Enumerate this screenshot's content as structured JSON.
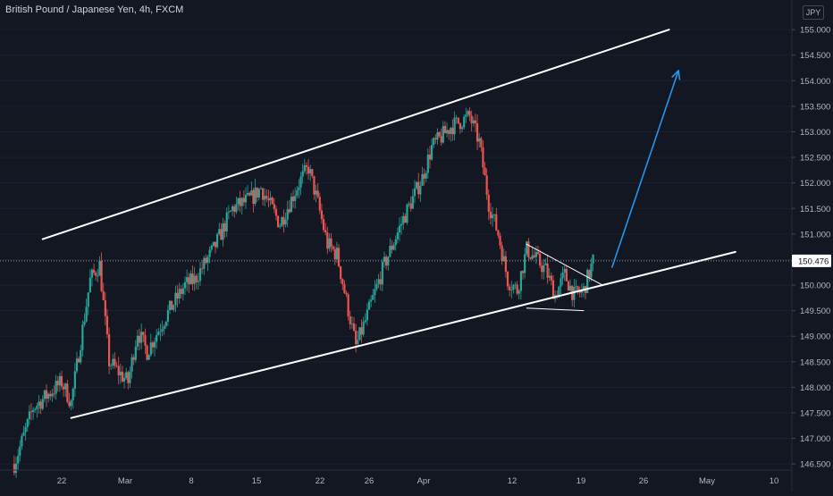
{
  "chart_data": {
    "type": "candlestick",
    "title": "British Pound / Japanese Yen, 4h, FXCM",
    "currency": "JPY",
    "last_price": 150.476,
    "y_ticks": [
      155.0,
      154.5,
      154.0,
      153.5,
      153.0,
      152.5,
      152.0,
      151.5,
      151.0,
      150.5,
      150.0,
      149.5,
      149.0,
      148.5,
      148.0,
      147.5,
      147.0,
      146.5
    ],
    "y_tick_labels": [
      "155.000",
      "154.500",
      "154.000",
      "153.500",
      "153.000",
      "152.500",
      "152.000",
      "151.500",
      "151.000",
      "150.500",
      "150.000",
      "149.500",
      "149.000",
      "148.500",
      "148.000",
      "147.500",
      "147.000",
      "146.500"
    ],
    "ylim": [
      146.45,
      155.3
    ],
    "x_ticks": [
      "22",
      "Mar",
      "8",
      "15",
      "22",
      "26",
      "Apr",
      "12",
      "19",
      "26",
      "May",
      "10"
    ],
    "colors": {
      "up": "#26a69a",
      "down": "#ef5350",
      "arrow": "#2196f3",
      "line": "#ffffff",
      "bg": "#131722",
      "axis_text": "#b2b5be"
    },
    "price_path": [
      {
        "date": "Feb 17",
        "price": 146.5
      },
      {
        "date": "Feb 19",
        "price": 147.6
      },
      {
        "date": "Feb 22",
        "price": 148.1
      },
      {
        "date": "Feb 23",
        "price": 147.7
      },
      {
        "date": "Feb 25",
        "price": 150.1
      },
      {
        "date": "Feb 26",
        "price": 150.4
      },
      {
        "date": "Feb 27",
        "price": 148.5
      },
      {
        "date": "Mar 1",
        "price": 148.1
      },
      {
        "date": "Mar 2",
        "price": 149.1
      },
      {
        "date": "Mar 3",
        "price": 148.7
      },
      {
        "date": "Mar 5",
        "price": 149.4
      },
      {
        "date": "Mar 7",
        "price": 150.0
      },
      {
        "date": "Mar 8",
        "price": 150.1
      },
      {
        "date": "Mar 10",
        "price": 150.7
      },
      {
        "date": "Mar 12",
        "price": 151.5
      },
      {
        "date": "Mar 14",
        "price": 151.7
      },
      {
        "date": "Mar 15",
        "price": 151.9
      },
      {
        "date": "Mar 17",
        "price": 151.2
      },
      {
        "date": "Mar 19",
        "price": 152.0
      },
      {
        "date": "Mar 20",
        "price": 152.3
      },
      {
        "date": "Mar 21",
        "price": 151.6
      },
      {
        "date": "Mar 22",
        "price": 150.8
      },
      {
        "date": "Mar 23",
        "price": 150.6
      },
      {
        "date": "Mar 25",
        "price": 148.8
      },
      {
        "date": "Mar 26",
        "price": 149.3
      },
      {
        "date": "Mar 28",
        "price": 150.4
      },
      {
        "date": "Mar 30",
        "price": 151.3
      },
      {
        "date": "Apr 1",
        "price": 152.1
      },
      {
        "date": "Apr 2",
        "price": 152.7
      },
      {
        "date": "Apr 4",
        "price": 153.1
      },
      {
        "date": "Apr 6",
        "price": 153.3
      },
      {
        "date": "Apr 7",
        "price": 152.8
      },
      {
        "date": "Apr 8",
        "price": 151.6
      },
      {
        "date": "Apr 9",
        "price": 151.0
      },
      {
        "date": "Apr 10",
        "price": 150.1
      },
      {
        "date": "Apr 11",
        "price": 149.9
      },
      {
        "date": "Apr 12",
        "price": 150.7
      },
      {
        "date": "Apr 14",
        "price": 150.3
      },
      {
        "date": "Apr 15",
        "price": 149.8
      },
      {
        "date": "Apr 16",
        "price": 150.2
      },
      {
        "date": "Apr 17",
        "price": 149.8
      },
      {
        "date": "Apr 18",
        "price": 149.9
      },
      {
        "date": "Apr 19",
        "price": 150.476
      }
    ],
    "annotations": {
      "channel_upper": [
        {
          "date": "Feb 20",
          "price": 150.9
        },
        {
          "date": "Apr 27",
          "price": 155.0
        }
      ],
      "channel_lower": [
        {
          "date": "Feb 23",
          "price": 147.4
        },
        {
          "date": "May 4",
          "price": 150.65
        }
      ],
      "triangle_upper": [
        {
          "date": "Apr 12",
          "price": 150.8
        },
        {
          "date": "Apr 20",
          "price": 150.0
        }
      ],
      "triangle_lower": [
        {
          "date": "Apr 12",
          "price": 149.55
        },
        {
          "date": "Apr 18",
          "price": 149.5
        }
      ],
      "arrow": [
        {
          "date": "Apr 21",
          "price": 150.35
        },
        {
          "date": "Apr 28",
          "price": 154.2
        }
      ]
    }
  }
}
